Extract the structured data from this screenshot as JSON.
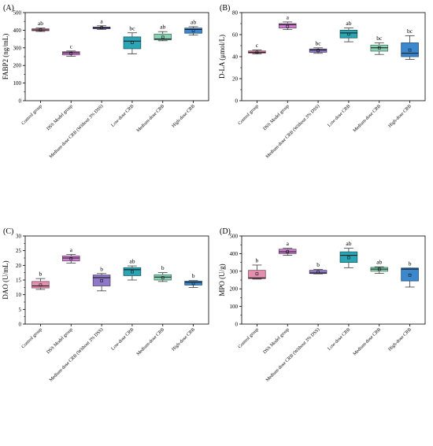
{
  "chart_data": [
    {
      "type": "box",
      "panel_label": "(A)",
      "ylabel": "FABP2 (ng/mL)",
      "ylim": [
        0,
        500
      ],
      "yticks": [
        0,
        100,
        200,
        300,
        400,
        500
      ],
      "categories": [
        "Control group",
        "DSS Model group",
        "Medium-dose CRB (Without 3% DSS)",
        "Low-dose CRB",
        "Medium-dose CRB",
        "High-dose CRB"
      ],
      "colors": [
        "#e58fb0",
        "#cc7fd1",
        "#8f78c8",
        "#2aa5b5",
        "#86d2b3",
        "#3b88cf"
      ],
      "boxes": [
        {
          "whisker_low": 393,
          "q1": 397,
          "median": 402,
          "q3": 408,
          "whisker_high": 412,
          "mean": 402
        },
        {
          "whisker_low": 252,
          "q1": 260,
          "median": 272,
          "q3": 278,
          "whisker_high": 282,
          "mean": 269
        },
        {
          "whisker_low": 405,
          "q1": 408,
          "median": 414,
          "q3": 418,
          "whisker_high": 425,
          "mean": 414
        },
        {
          "whisker_low": 265,
          "q1": 295,
          "median": 338,
          "q3": 362,
          "whisker_high": 385,
          "mean": 330
        },
        {
          "whisker_low": 340,
          "q1": 345,
          "median": 350,
          "q3": 378,
          "whisker_high": 392,
          "mean": 360
        },
        {
          "whisker_low": 372,
          "q1": 383,
          "median": 404,
          "q3": 412,
          "whisker_high": 420,
          "mean": 398
        }
      ],
      "significance": [
        "ab",
        "c",
        "a",
        "bc",
        "ab",
        "ab"
      ]
    },
    {
      "type": "box",
      "panel_label": "(B)",
      "ylabel": "D-LA (μmol/L)",
      "ylim": [
        0,
        80
      ],
      "yticks": [
        0,
        20,
        40,
        60,
        80
      ],
      "categories": [
        "Control group",
        "DSS Model group",
        "Medium-dose CRB (Without 3% DSS)",
        "Low-dose CRB",
        "Medium-dose CRB",
        "High-dose CRB"
      ],
      "colors": [
        "#e58fb0",
        "#cc7fd1",
        "#8f78c8",
        "#2aa5b5",
        "#86d2b3",
        "#3b88cf"
      ],
      "boxes": [
        {
          "whisker_low": 42.5,
          "q1": 43.2,
          "median": 44.0,
          "q3": 45.2,
          "whisker_high": 46.0,
          "mean": 44.0
        },
        {
          "whisker_low": 64.5,
          "q1": 66.0,
          "median": 69.0,
          "q3": 70.0,
          "whisker_high": 71.5,
          "mean": 67.5
        },
        {
          "whisker_low": 43.0,
          "q1": 44.0,
          "median": 46.0,
          "q3": 47.0,
          "whisker_high": 48.0,
          "mean": 45.5
        },
        {
          "whisker_low": 53.5,
          "q1": 57.0,
          "median": 61.5,
          "q3": 64.0,
          "whisker_high": 66.0,
          "mean": 60.5
        },
        {
          "whisker_low": 42.0,
          "q1": 45.0,
          "median": 48.0,
          "q3": 50.5,
          "whisker_high": 52.5,
          "mean": 48.0
        },
        {
          "whisker_low": 37.5,
          "q1": 40.0,
          "median": 43.0,
          "q3": 52.5,
          "whisker_high": 59.0,
          "mean": 46.0
        }
      ],
      "significance": [
        "c",
        "a",
        "bc",
        "ab",
        "bc",
        "bc"
      ]
    },
    {
      "type": "box",
      "panel_label": "(C)",
      "ylabel": "DAO (U/mL)",
      "ylim": [
        0,
        30
      ],
      "yticks": [
        0,
        5,
        10,
        15,
        20,
        25,
        30
      ],
      "categories": [
        "Control group",
        "DSS Model group",
        "Medium-dose CRB (Without 3% DSS)",
        "Low-dose CRB",
        "Medium-dose CRB",
        "High-dose CRB"
      ],
      "colors": [
        "#e58fb0",
        "#cc7fd1",
        "#8f78c8",
        "#2aa5b5",
        "#86d2b3",
        "#3b88cf"
      ],
      "boxes": [
        {
          "whisker_low": 11.8,
          "q1": 12.3,
          "median": 13.0,
          "q3": 14.5,
          "whisker_high": 15.5,
          "mean": 13.3
        },
        {
          "whisker_low": 20.8,
          "q1": 21.5,
          "median": 22.5,
          "q3": 23.2,
          "whisker_high": 23.7,
          "mean": 22.3
        },
        {
          "whisker_low": 11.3,
          "q1": 13.0,
          "median": 15.8,
          "q3": 16.7,
          "whisker_high": 17.2,
          "mean": 14.8
        },
        {
          "whisker_low": 15.0,
          "q1": 16.5,
          "median": 18.5,
          "q3": 19.2,
          "whisker_high": 19.8,
          "mean": 17.8
        },
        {
          "whisker_low": 14.5,
          "q1": 15.0,
          "median": 16.0,
          "q3": 16.8,
          "whisker_high": 17.5,
          "mean": 15.8
        },
        {
          "whisker_low": 12.5,
          "q1": 13.3,
          "median": 14.2,
          "q3": 14.6,
          "whisker_high": 14.8,
          "mean": 13.8
        }
      ],
      "significance": [
        "b",
        "a",
        "b",
        "ab",
        "b",
        "b"
      ]
    },
    {
      "type": "box",
      "panel_label": "(D)",
      "ylabel": "MPO (U/g)",
      "ylim": [
        0,
        500
      ],
      "yticks": [
        0,
        100,
        200,
        300,
        400,
        500
      ],
      "categories": [
        "Control group",
        "DSS Model group",
        "Medium-dose CRB (Without 3% DSS)",
        "Low-dose CRB",
        "Medium-dose CRB",
        "High-dose CRB"
      ],
      "colors": [
        "#e58fb0",
        "#cc7fd1",
        "#8f78c8",
        "#2aa5b5",
        "#86d2b3",
        "#3b88cf"
      ],
      "boxes": [
        {
          "whisker_low": 255,
          "q1": 258,
          "median": 262,
          "q3": 305,
          "whisker_high": 335,
          "mean": 285
        },
        {
          "whisker_low": 390,
          "q1": 400,
          "median": 410,
          "q3": 425,
          "whisker_high": 430,
          "mean": 411
        },
        {
          "whisker_low": 285,
          "q1": 287,
          "median": 290,
          "q3": 305,
          "whisker_high": 310,
          "mean": 296
        },
        {
          "whisker_low": 320,
          "q1": 350,
          "median": 390,
          "q3": 410,
          "whisker_high": 430,
          "mean": 377
        },
        {
          "whisker_low": 288,
          "q1": 300,
          "median": 312,
          "q3": 322,
          "whisker_high": 325,
          "mean": 311
        },
        {
          "whisker_low": 210,
          "q1": 245,
          "median": 312,
          "q3": 318,
          "whisker_high": 318,
          "mean": 278
        }
      ],
      "significance": [
        "b",
        "a",
        "b",
        "ab",
        "ab",
        "b"
      ]
    }
  ]
}
